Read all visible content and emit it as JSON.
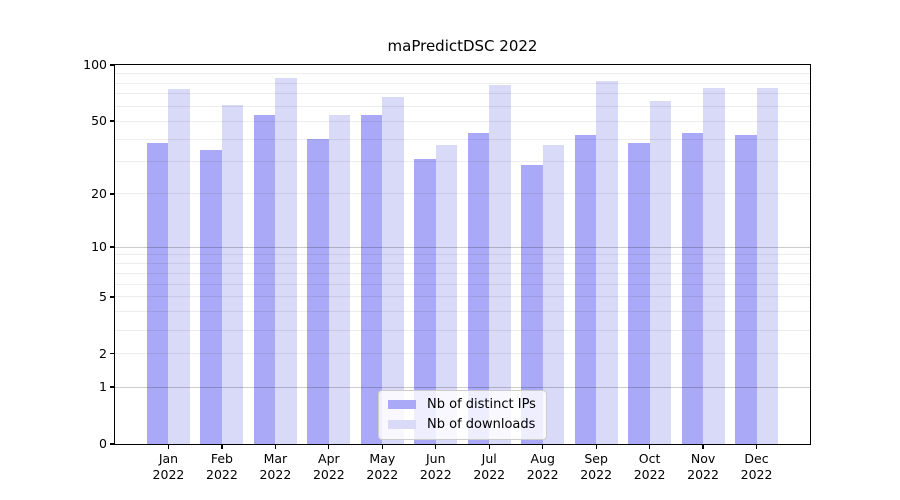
{
  "title": "maPredictDSC 2022",
  "chart_data": {
    "type": "bar",
    "title": "maPredictDSC 2022",
    "xlabel": "",
    "ylabel": "",
    "y_scale": "symlog ln(1+x)",
    "ylim": [
      0,
      100
    ],
    "categories": [
      "Jan 2022",
      "Feb 2022",
      "Mar 2022",
      "Apr 2022",
      "May 2022",
      "Jun 2022",
      "Jul 2022",
      "Aug 2022",
      "Sep 2022",
      "Oct 2022",
      "Nov 2022",
      "Dec 2022"
    ],
    "series": [
      {
        "name": "Nb of distinct IPs",
        "color": "#a9a9f8",
        "values": [
          38,
          35,
          54,
          40,
          54,
          31,
          43,
          29,
          42,
          38,
          43,
          42
        ]
      },
      {
        "name": "Nb of downloads",
        "color": "#d9d9f8",
        "values": [
          74,
          61,
          85,
          54,
          67,
          37,
          78,
          37,
          82,
          64,
          75,
          75
        ]
      }
    ],
    "yticks": [
      0,
      1,
      2,
      5,
      10,
      20,
      50,
      100
    ],
    "emphasized_gridlines": [
      1,
      10
    ],
    "minor_gridlines": [
      2,
      3,
      4,
      5,
      6,
      7,
      8,
      9,
      20,
      30,
      40,
      50,
      60,
      70,
      80,
      90
    ],
    "legend_position": "lower center",
    "grid": true
  }
}
